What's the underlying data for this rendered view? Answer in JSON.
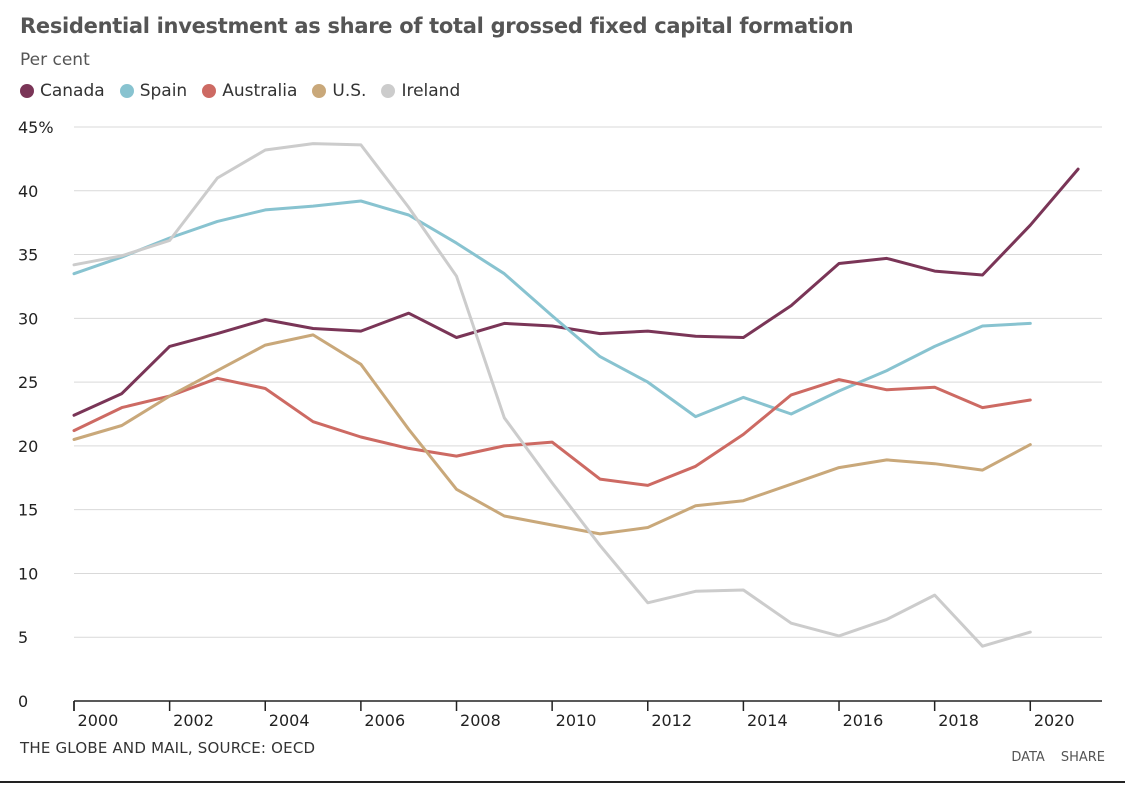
{
  "title": "Residential investment as share of total grossed fixed capital formation",
  "subtitle": "Per cent",
  "source": "THE GLOBE AND MAIL, SOURCE: OECD",
  "footer_links": [
    "DATA",
    "SHARE"
  ],
  "chart_data": {
    "type": "line",
    "title": "Residential investment as share of total grossed fixed capital formation",
    "ylabel": "Per cent",
    "xlabel": "",
    "ylim": [
      0,
      45
    ],
    "xlim": [
      1999.5,
      2021
    ],
    "y_ticks": [
      0,
      5,
      10,
      15,
      20,
      25,
      30,
      35,
      40,
      45
    ],
    "y_tick_labels": [
      "0",
      "5",
      "10",
      "15",
      "20",
      "25",
      "30",
      "35",
      "40",
      "45%"
    ],
    "x_ticks": [
      2000,
      2002,
      2004,
      2006,
      2008,
      2010,
      2012,
      2014,
      2016,
      2018,
      2020
    ],
    "x_tick_labels": [
      "2000",
      "2002",
      "2004",
      "2006",
      "2008",
      "2010",
      "2012",
      "2014",
      "2016",
      "2018",
      "2020"
    ],
    "grid": "horizontal",
    "legend_position": "top-left",
    "series": [
      {
        "name": "Canada",
        "color": "#7a3557",
        "x": [
          1999.5,
          2000.5,
          2001.5,
          2002.5,
          2003.5,
          2004.5,
          2005.5,
          2006.5,
          2007.5,
          2008.5,
          2009.5,
          2010.5,
          2011.5,
          2012.5,
          2013.5,
          2014.5,
          2015.5,
          2016.5,
          2017.5,
          2018.5,
          2019.5,
          2020.5
        ],
        "values": [
          22.4,
          24.1,
          27.8,
          28.8,
          29.9,
          29.2,
          29.0,
          30.4,
          28.5,
          29.6,
          29.4,
          28.8,
          29.0,
          28.6,
          28.5,
          31.0,
          34.3,
          34.7,
          33.7,
          33.4,
          37.3,
          41.7
        ]
      },
      {
        "name": "Spain",
        "color": "#88c3d0",
        "x": [
          1999.5,
          2000.5,
          2001.5,
          2002.5,
          2003.5,
          2004.5,
          2005.5,
          2006.5,
          2007.5,
          2008.5,
          2009.5,
          2010.5,
          2011.5,
          2012.5,
          2013.5,
          2014.5,
          2015.5,
          2016.5,
          2017.5,
          2018.5,
          2019.5
        ],
        "values": [
          33.5,
          34.8,
          36.3,
          37.6,
          38.5,
          38.8,
          39.2,
          38.1,
          35.9,
          33.5,
          30.2,
          27.0,
          25.0,
          22.3,
          23.8,
          22.5,
          24.3,
          25.9,
          27.8,
          29.4,
          29.6
        ]
      },
      {
        "name": "Australia",
        "color": "#cd6a63",
        "x": [
          1999.5,
          2000.5,
          2001.5,
          2002.5,
          2003.5,
          2004.5,
          2005.5,
          2006.5,
          2007.5,
          2008.5,
          2009.5,
          2010.5,
          2011.5,
          2012.5,
          2013.5,
          2014.5,
          2015.5,
          2016.5,
          2017.5,
          2018.5,
          2019.5
        ],
        "values": [
          21.2,
          23.0,
          23.9,
          25.3,
          24.5,
          21.9,
          20.7,
          19.8,
          19.2,
          20.0,
          20.3,
          17.4,
          16.9,
          18.4,
          20.9,
          24.0,
          25.2,
          24.4,
          24.6,
          23.0,
          23.6
        ]
      },
      {
        "name": "U.S.",
        "color": "#c9a87a",
        "x": [
          1999.5,
          2000.5,
          2001.5,
          2002.5,
          2003.5,
          2004.5,
          2005.5,
          2006.5,
          2007.5,
          2008.5,
          2009.5,
          2010.5,
          2011.5,
          2012.5,
          2013.5,
          2014.5,
          2015.5,
          2016.5,
          2017.5,
          2018.5,
          2019.5
        ],
        "values": [
          20.5,
          21.6,
          23.9,
          25.9,
          27.9,
          28.7,
          26.4,
          21.3,
          16.6,
          14.5,
          13.8,
          13.1,
          13.6,
          15.3,
          15.7,
          17.0,
          18.3,
          18.9,
          18.6,
          18.1,
          20.1
        ]
      },
      {
        "name": "Ireland",
        "color": "#cccccc",
        "x": [
          1999.5,
          2000.5,
          2001.5,
          2002.5,
          2003.5,
          2004.5,
          2005.5,
          2006.5,
          2007.5,
          2008.5,
          2009.5,
          2010.5,
          2011.5,
          2012.5,
          2013.5,
          2014.5,
          2015.5,
          2016.5,
          2017.5,
          2018.5,
          2019.5
        ],
        "values": [
          34.2,
          34.9,
          36.1,
          41.0,
          43.2,
          43.7,
          43.6,
          38.7,
          33.3,
          22.2,
          17.1,
          12.2,
          7.7,
          8.6,
          8.7,
          6.1,
          5.1,
          6.4,
          8.3,
          4.3,
          5.4
        ]
      }
    ]
  }
}
